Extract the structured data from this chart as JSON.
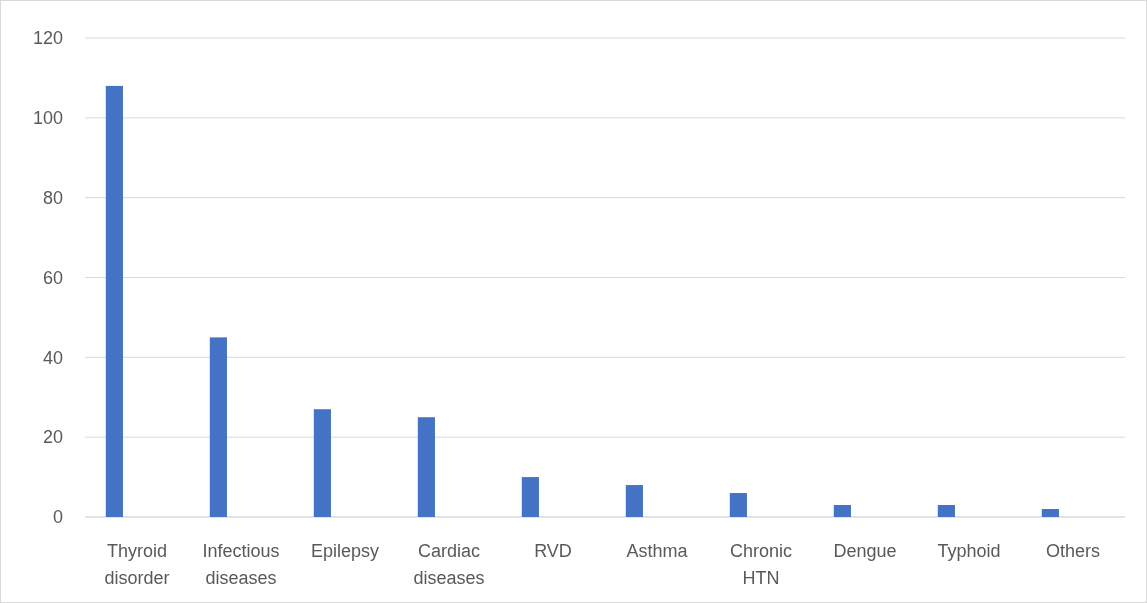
{
  "chart_data": {
    "type": "bar",
    "categories": [
      "Thyroid disorder",
      "Infectious diseases",
      "Epilepsy",
      "Cardiac diseases",
      "RVD",
      "Asthma",
      "Chronic HTN",
      "Dengue",
      "Typhoid",
      "Others"
    ],
    "values": [
      108,
      45,
      27,
      25,
      10,
      8,
      6,
      3,
      3,
      2
    ],
    "color": "#4472c4",
    "ylim": [
      0,
      120
    ],
    "yticks": [
      0,
      20,
      40,
      60,
      80,
      100,
      120
    ],
    "grid": "y"
  }
}
